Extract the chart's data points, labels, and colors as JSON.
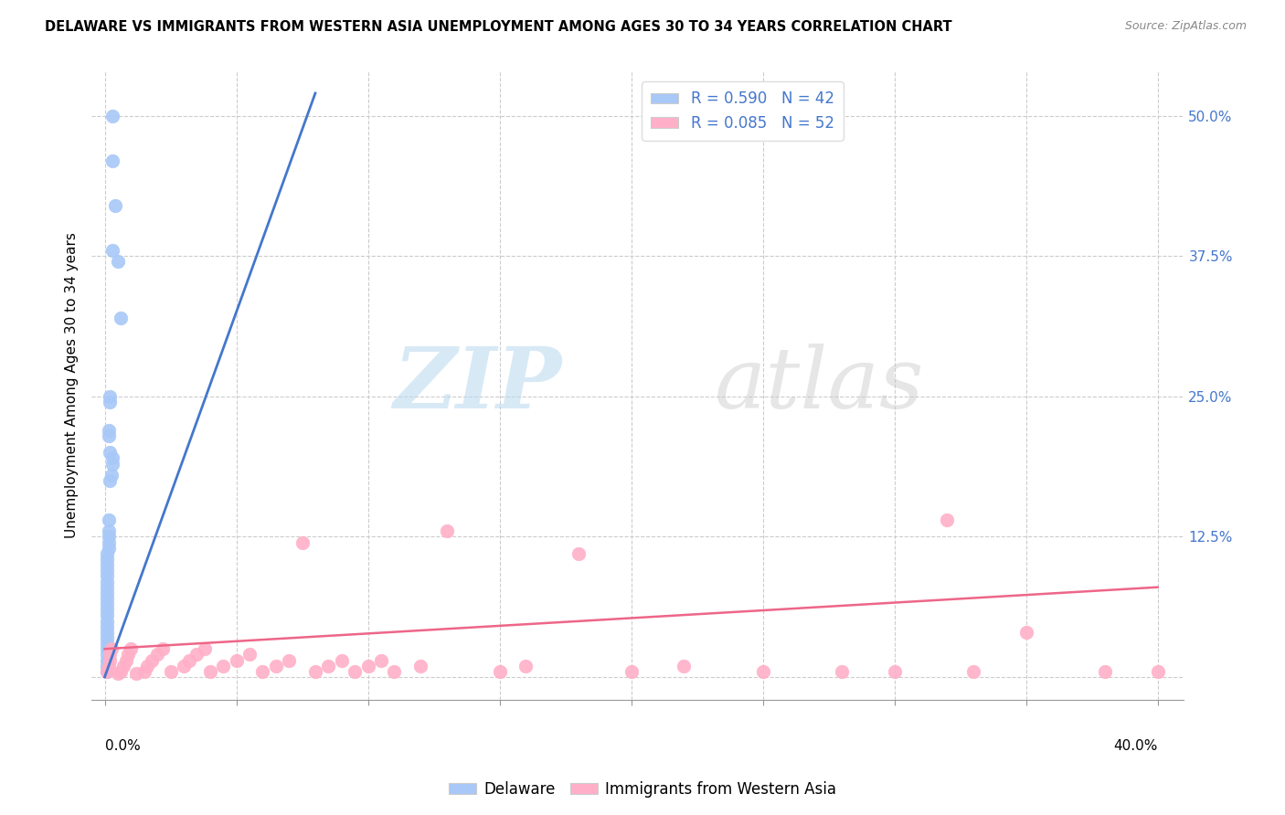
{
  "title": "DELAWARE VS IMMIGRANTS FROM WESTERN ASIA UNEMPLOYMENT AMONG AGES 30 TO 34 YEARS CORRELATION CHART",
  "source": "Source: ZipAtlas.com",
  "ylabel": "Unemployment Among Ages 30 to 34 years",
  "legend1_label": "R = 0.590   N = 42",
  "legend2_label": "R = 0.085   N = 52",
  "legend_bottom1": "Delaware",
  "legend_bottom2": "Immigrants from Western Asia",
  "blue_color": "#a8c8f8",
  "pink_color": "#ffb0c8",
  "blue_line_color": "#4477cc",
  "pink_line_color": "#ee6688",
  "watermark_zip": "ZIP",
  "watermark_atlas": "atlas",
  "blue_scatter_x": [
    0.3,
    0.3,
    0.4,
    0.3,
    0.5,
    0.6,
    0.2,
    0.2,
    0.15,
    0.15,
    0.2,
    0.3,
    0.3,
    0.25,
    0.2,
    0.15,
    0.15,
    0.15,
    0.15,
    0.15,
    0.1,
    0.1,
    0.1,
    0.1,
    0.1,
    0.1,
    0.1,
    0.1,
    0.1,
    0.1,
    0.1,
    0.1,
    0.1,
    0.1,
    0.1,
    0.1,
    0.1,
    0.1,
    0.1,
    0.1,
    0.1,
    0.1
  ],
  "blue_scatter_y": [
    50.0,
    46.0,
    42.0,
    38.0,
    37.0,
    32.0,
    25.0,
    24.5,
    22.0,
    21.5,
    20.0,
    19.5,
    19.0,
    18.0,
    17.5,
    14.0,
    13.0,
    12.5,
    12.0,
    11.5,
    11.0,
    10.5,
    10.0,
    9.5,
    9.0,
    8.5,
    8.0,
    7.5,
    7.0,
    6.5,
    6.0,
    5.5,
    5.0,
    4.5,
    4.0,
    3.5,
    3.0,
    2.5,
    2.0,
    1.5,
    1.0,
    0.5
  ],
  "pink_scatter_x": [
    0.1,
    0.15,
    0.2,
    0.2,
    0.25,
    0.5,
    0.6,
    0.7,
    0.8,
    0.9,
    1.0,
    1.2,
    1.5,
    1.6,
    1.8,
    2.0,
    2.2,
    2.5,
    3.0,
    3.2,
    3.5,
    3.8,
    4.0,
    4.5,
    5.0,
    5.5,
    6.0,
    6.5,
    7.0,
    7.5,
    8.0,
    8.5,
    9.0,
    9.5,
    10.0,
    10.5,
    11.0,
    12.0,
    13.0,
    15.0,
    16.0,
    18.0,
    20.0,
    22.0,
    25.0,
    28.0,
    30.0,
    32.0,
    33.0,
    35.0,
    38.0,
    40.0
  ],
  "pink_scatter_y": [
    0.5,
    1.0,
    1.5,
    2.0,
    2.5,
    0.3,
    0.5,
    1.0,
    1.5,
    2.0,
    2.5,
    0.3,
    0.5,
    1.0,
    1.5,
    2.0,
    2.5,
    0.5,
    1.0,
    1.5,
    2.0,
    2.5,
    0.5,
    1.0,
    1.5,
    2.0,
    0.5,
    1.0,
    1.5,
    12.0,
    0.5,
    1.0,
    1.5,
    0.5,
    1.0,
    1.5,
    0.5,
    1.0,
    13.0,
    0.5,
    1.0,
    11.0,
    0.5,
    1.0,
    0.5,
    0.5,
    0.5,
    14.0,
    0.5,
    4.0,
    0.5,
    0.5
  ],
  "xlim_min": -0.5,
  "xlim_max": 41.0,
  "ylim_min": -2.0,
  "ylim_max": 54.0,
  "yticks": [
    0.0,
    12.5,
    25.0,
    37.5,
    50.0
  ],
  "ytick_labels": [
    "",
    "12.5%",
    "25.0%",
    "37.5%",
    "50.0%"
  ],
  "xtick_positions": [
    0.0,
    5.0,
    10.0,
    15.0,
    20.0,
    25.0,
    30.0,
    35.0,
    40.0
  ],
  "blue_trend_x": [
    0.0,
    8.0
  ],
  "blue_trend_y": [
    0.0,
    52.0
  ],
  "pink_trend_x": [
    0.0,
    40.0
  ],
  "pink_trend_y": [
    2.5,
    8.0
  ],
  "title_fontsize": 10.5,
  "source_fontsize": 9,
  "tick_fontsize": 11,
  "legend_fontsize": 12,
  "ylabel_fontsize": 11
}
